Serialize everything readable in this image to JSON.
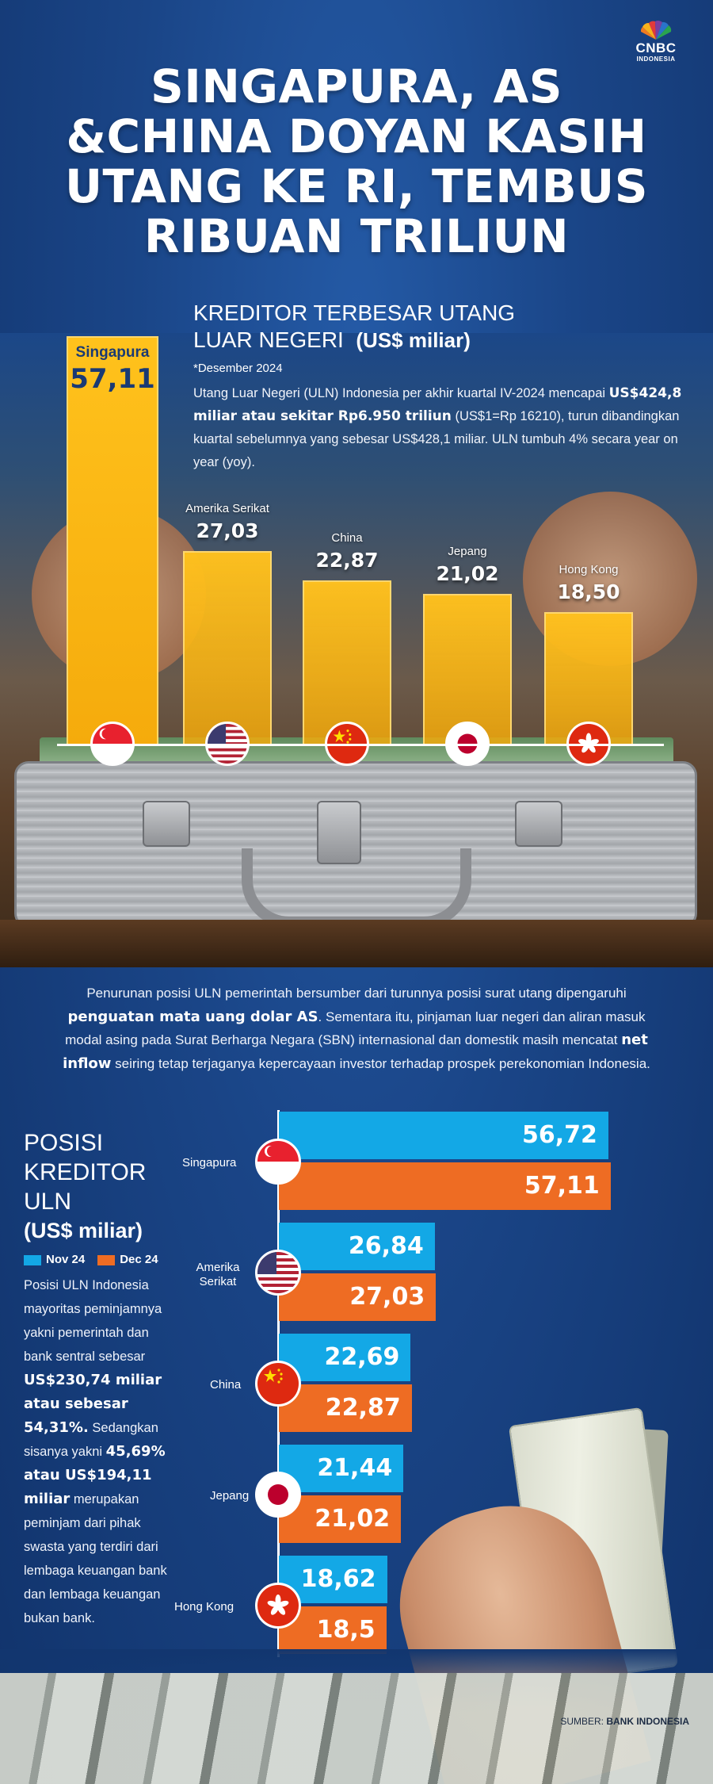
{
  "brand": {
    "name": "CNBC",
    "sub": "INDONESIA"
  },
  "title_lines": [
    "SINGAPURA, AS",
    "&CHINA DOYAN KASIH",
    "UTANG KE RI, TEMBUS",
    "RIBUAN TRILIUN"
  ],
  "top_section": {
    "heading_line1": "KREDITOR TERBESAR UTANG",
    "heading_line2": "LUAR NEGERI",
    "heading_unit": "(US$ miliar)",
    "note": "*Desember 2024",
    "para_1": "Utang Luar Negeri (ULN) Indonesia per akhir kuartal IV-2024 mencapai ",
    "para_bold": "US$424,8 miliar atau sekitar Rp6.950 triliun",
    "para_2": " (US$1=Rp 16210), turun dibandingkan kuartal sebelumnya yang sebesar US$428,1 miliar. ULN tumbuh 4% secara year on year (yoy)."
  },
  "middle_para": {
    "p1": "Penurunan posisi ULN pemerintah bersumber dari turunnya posisi surat utang dipengaruhi ",
    "b1": "penguatan mata uang dolar AS",
    "p2": ". Sementara itu, pinjaman luar negeri dan aliran masuk modal asing pada Surat Berharga Negara (SBN) internasional dan domestik masih mencatat ",
    "b2": "net inflow",
    "p3": " seiring tetap terjaganya kepercayaan investor terhadap prospek perekonomian Indonesia."
  },
  "bottom_section": {
    "title_line1": "POSISI",
    "title_line2": "KREDITOR",
    "title_line3": "ULN",
    "title_unit": "(US$ miliar)",
    "legend_nov": "Nov 24",
    "legend_dec": "Dec 24",
    "para_1": "Posisi ULN Indonesia mayoritas peminjamnya yakni pemerintah dan bank sentral sebesar ",
    "para_bold1": "US$230,74 miliar atau sebesar 54,31%.",
    "para_2": " Sedangkan sisanya yakni ",
    "para_bold2": "45,69% atau US$194,11 miliar",
    "para_3": " merupakan peminjam dari pihak swasta yang terdiri dari lembaga keuangan bank dan lembaga keuangan bukan bank."
  },
  "source_label": "SUMBER: ",
  "source_name": "BANK INDONESIA",
  "colors": {
    "nov": "#13a8e6",
    "dec": "#ee6c23",
    "gold": "#ffc21c",
    "bg": "#1a4587"
  },
  "chart_data": [
    {
      "type": "bar",
      "title": "KREDITOR TERBESAR UTANG LUAR NEGERI (US$ miliar)",
      "categories": [
        "Singapura",
        "Amerika Serikat",
        "China",
        "Jepang",
        "Hong Kong"
      ],
      "values": [
        57.11,
        27.03,
        22.87,
        21.02,
        18.5
      ],
      "value_labels": [
        "57,11",
        "27,03",
        "22,87",
        "21,02",
        "18,50"
      ],
      "icons": [
        "flag-singapore",
        "flag-usa",
        "flag-china",
        "flag-japan",
        "flag-hong-kong"
      ]
    },
    {
      "type": "bar",
      "orientation": "horizontal",
      "title": "POSISI KREDITOR ULN (US$ miliar)",
      "categories": [
        "Singapura",
        "Amerika Serikat",
        "China",
        "Jepang",
        "Hong Kong"
      ],
      "series": [
        {
          "name": "Nov 24",
          "values": [
            56.72,
            26.84,
            22.69,
            21.44,
            18.62
          ],
          "labels": [
            "56,72",
            "26,84",
            "22,69",
            "21,44",
            "18,62"
          ]
        },
        {
          "name": "Dec 24",
          "values": [
            57.11,
            27.03,
            22.87,
            21.02,
            18.5
          ],
          "labels": [
            "57,11",
            "27,03",
            "22,87",
            "21,02",
            "18,5"
          ]
        }
      ],
      "legend": "top-left"
    }
  ]
}
